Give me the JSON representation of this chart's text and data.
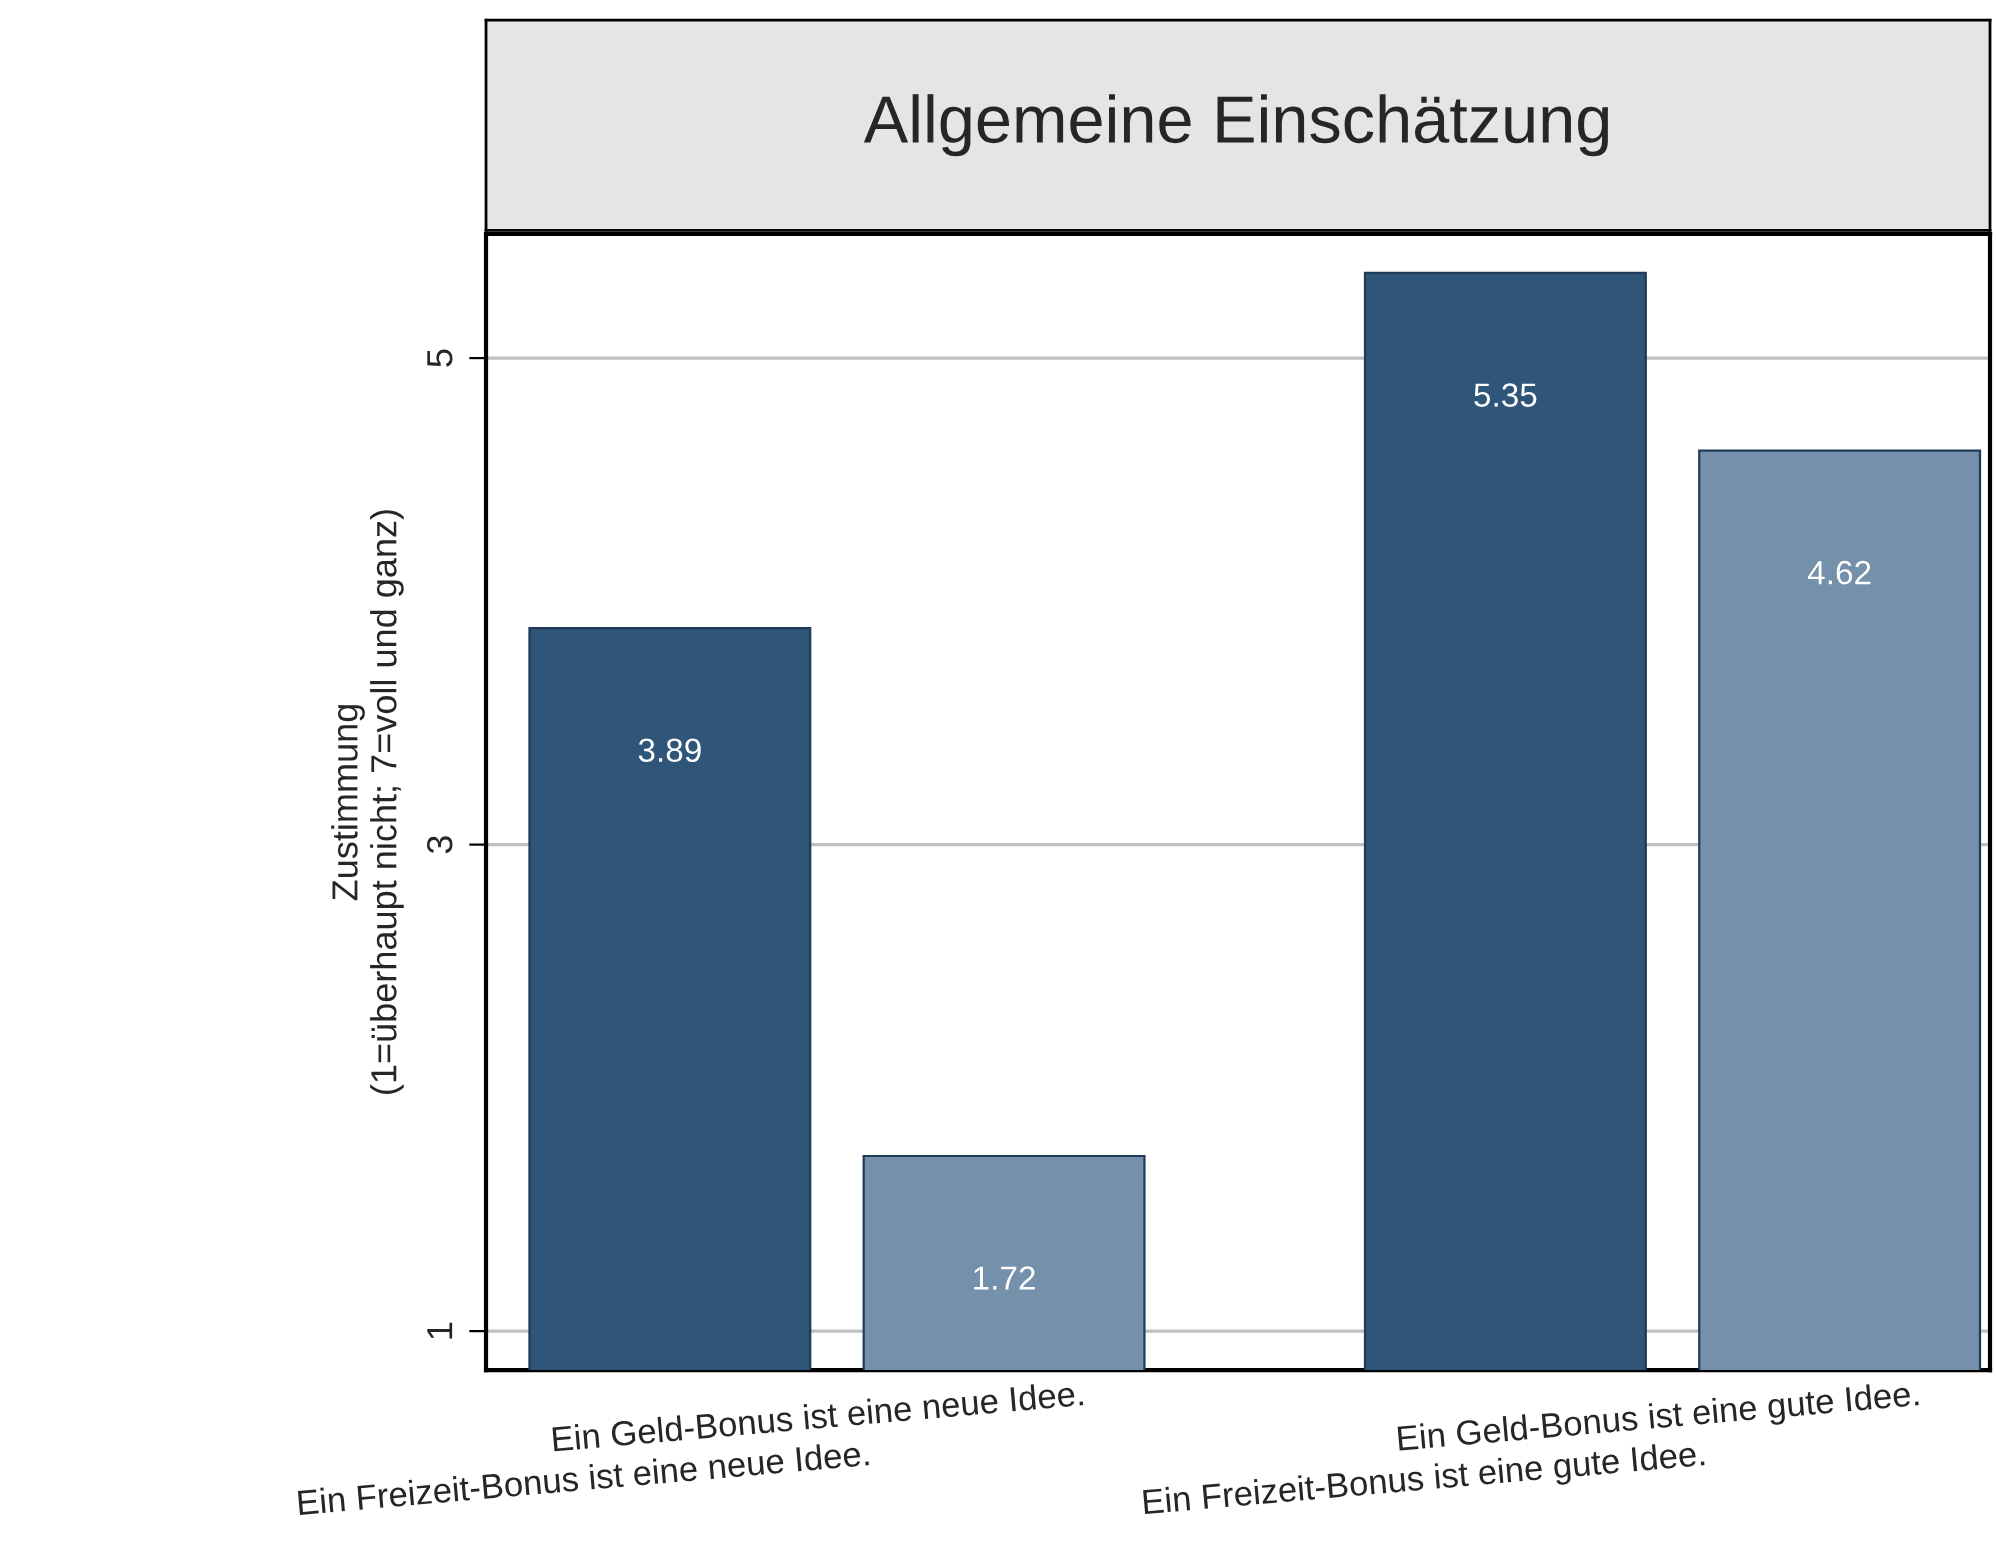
{
  "chart_data": {
    "type": "bar",
    "title": "Allgemeine Einschätzung",
    "ylabel": "Zustimmung\n(1=überhaupt nicht; 7=voll und ganz)",
    "categories": [
      "Ein Freizeit-Bonus ist eine neue Idee.",
      "Ein Geld-Bonus ist eine neue Idee.",
      "Ein Freizeit-Bonus ist eine gute Idee.",
      "Ein Geld-Bonus ist eine gute Idee."
    ],
    "values": [
      3.89,
      1.72,
      5.35,
      4.62
    ],
    "colors": [
      "#2f5579",
      "#7590aa",
      "#2f5579",
      "#7590aa"
    ],
    "ylim": [
      0.84,
      5.51
    ],
    "yticks": [
      1,
      3,
      5
    ],
    "grid": "y",
    "data_labels": true
  }
}
